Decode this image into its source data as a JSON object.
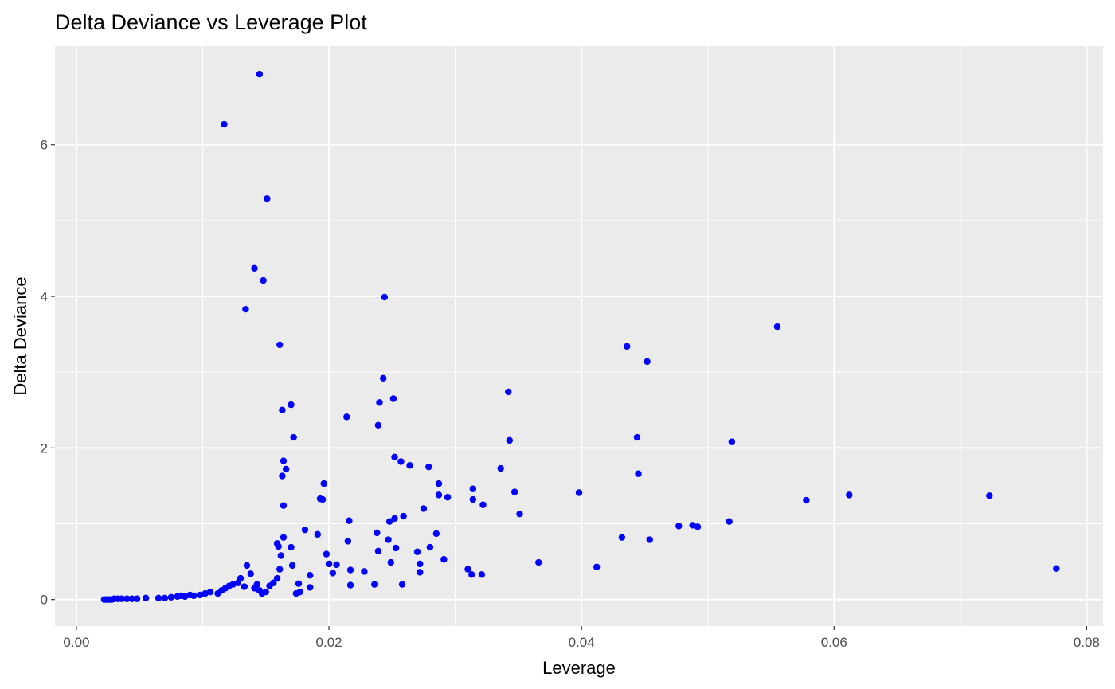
{
  "chart_data": {
    "type": "scatter",
    "title": "Delta Deviance vs Leverage Plot",
    "xlabel": "Leverage",
    "ylabel": "Delta Deviance",
    "xlim": [
      -0.0017,
      0.0813
    ],
    "ylim": [
      -0.35,
      7.3
    ],
    "x_ticks": [
      0.0,
      0.02,
      0.04,
      0.06,
      0.08
    ],
    "x_tick_labels": [
      "0.00",
      "0.02",
      "0.04",
      "0.06",
      "0.08"
    ],
    "y_ticks": [
      0,
      2,
      4,
      6
    ],
    "y_tick_labels": [
      "0",
      "2",
      "4",
      "6"
    ],
    "grid": true,
    "legend": "none",
    "colors": {
      "panel": "#ebebeb",
      "grid": "#ffffff",
      "point": "#0000ff",
      "tick": "#333333"
    },
    "series": [
      {
        "x": [
          0.0022,
          0.0024,
          0.0026,
          0.0028,
          0.003,
          0.0033,
          0.0036,
          0.004,
          0.0044,
          0.0048,
          0.0055,
          0.0065,
          0.007,
          0.0075,
          0.008,
          0.0083,
          0.0086,
          0.009,
          0.0093,
          0.0098,
          0.0102,
          0.0106,
          0.0112,
          0.0115,
          0.0118,
          0.0121,
          0.0124,
          0.0128,
          0.013,
          0.0133,
          0.0135,
          0.0138,
          0.0141,
          0.0143,
          0.0145,
          0.0147,
          0.015,
          0.0153,
          0.0156,
          0.0159,
          0.0161,
          0.0145,
          0.0117,
          0.0141,
          0.0148,
          0.0151,
          0.0134,
          0.0161,
          0.0163,
          0.017,
          0.0172,
          0.0164,
          0.0166,
          0.0163,
          0.0164,
          0.0164,
          0.0159,
          0.016,
          0.0162,
          0.017,
          0.0171,
          0.0181,
          0.0185,
          0.0191,
          0.0193,
          0.0196,
          0.0195,
          0.0198,
          0.02,
          0.0203,
          0.0206,
          0.0174,
          0.0177,
          0.0185,
          0.0176,
          0.0214,
          0.0216,
          0.0215,
          0.0217,
          0.0217,
          0.0228,
          0.0236,
          0.0239,
          0.024,
          0.0239,
          0.0238,
          0.0243,
          0.0244,
          0.0248,
          0.0249,
          0.0247,
          0.0252,
          0.0251,
          0.0252,
          0.0253,
          0.0257,
          0.0259,
          0.0258,
          0.0264,
          0.027,
          0.0272,
          0.0272,
          0.0275,
          0.0279,
          0.028,
          0.0285,
          0.0287,
          0.0287,
          0.0291,
          0.0294,
          0.031,
          0.0313,
          0.0314,
          0.0314,
          0.0322,
          0.0321,
          0.0336,
          0.0342,
          0.0343,
          0.0347,
          0.0351,
          0.0366,
          0.0398,
          0.0412,
          0.0432,
          0.0436,
          0.0444,
          0.0445,
          0.0452,
          0.0454,
          0.0477,
          0.0488,
          0.0492,
          0.0517,
          0.0519,
          0.0555,
          0.0578,
          0.0612,
          0.0723,
          0.0776
        ],
        "y": [
          0.0,
          0.0,
          0.0,
          0.0,
          0.01,
          0.01,
          0.01,
          0.01,
          0.01,
          0.01,
          0.02,
          0.02,
          0.02,
          0.03,
          0.04,
          0.05,
          0.04,
          0.06,
          0.05,
          0.06,
          0.08,
          0.1,
          0.08,
          0.12,
          0.15,
          0.18,
          0.2,
          0.22,
          0.28,
          0.17,
          0.45,
          0.34,
          0.15,
          0.2,
          0.12,
          0.08,
          0.1,
          0.18,
          0.22,
          0.28,
          0.4,
          6.93,
          6.27,
          4.37,
          4.21,
          5.29,
          3.83,
          3.36,
          2.5,
          2.57,
          2.14,
          1.83,
          1.72,
          1.63,
          1.24,
          0.82,
          0.74,
          0.7,
          0.58,
          0.69,
          0.45,
          0.92,
          0.32,
          0.86,
          1.33,
          1.53,
          1.32,
          0.6,
          0.47,
          0.35,
          0.46,
          0.08,
          0.1,
          0.16,
          0.21,
          2.41,
          1.04,
          0.77,
          0.39,
          0.19,
          0.37,
          0.2,
          2.3,
          2.6,
          0.64,
          0.88,
          2.92,
          3.99,
          1.03,
          0.49,
          0.79,
          1.88,
          2.65,
          1.07,
          0.68,
          1.82,
          1.1,
          0.2,
          1.77,
          0.63,
          0.47,
          0.36,
          1.2,
          1.75,
          0.69,
          0.87,
          1.53,
          1.38,
          0.53,
          1.35,
          0.4,
          0.33,
          1.46,
          1.32,
          1.25,
          0.33,
          1.73,
          2.74,
          2.1,
          1.42,
          1.13,
          0.49,
          1.41,
          0.43,
          0.82,
          3.34,
          2.14,
          1.66,
          3.14,
          0.79,
          0.97,
          0.98,
          0.96,
          1.03,
          2.08,
          3.6,
          1.31,
          1.38,
          1.37,
          0.41
        ]
      }
    ]
  }
}
